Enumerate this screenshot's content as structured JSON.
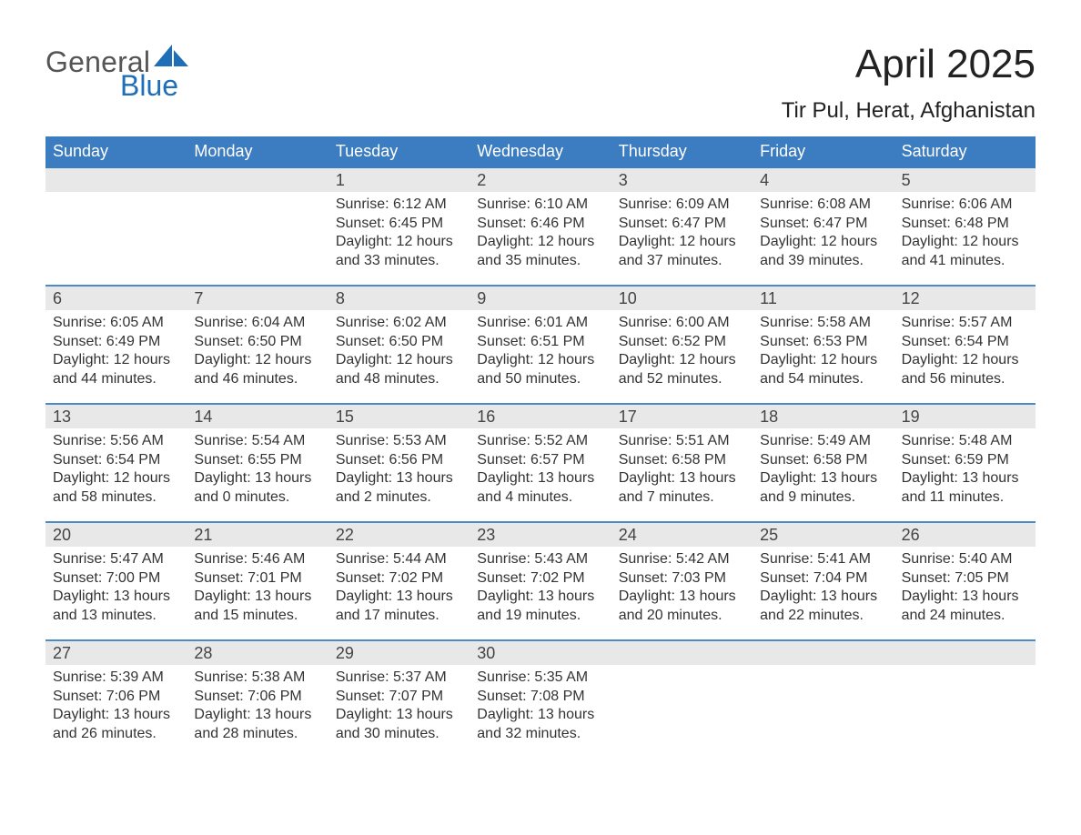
{
  "logo": {
    "text1": "General",
    "text2": "Blue",
    "sail_color": "#1e6fb8"
  },
  "title": "April 2025",
  "location": "Tir Pul, Herat, Afghanistan",
  "colors": {
    "header_blue": "#3c7cc0",
    "accent_blue": "#1e6fb8",
    "row_border": "#4b8cc6",
    "day_header_bg": "#e8e8e8",
    "background": "#ffffff"
  },
  "days_of_week": [
    "Sunday",
    "Monday",
    "Tuesday",
    "Wednesday",
    "Thursday",
    "Friday",
    "Saturday"
  ],
  "weeks": [
    [
      {
        "n": "",
        "sunrise": "",
        "sunset": "",
        "daylight1": "",
        "daylight2": ""
      },
      {
        "n": "",
        "sunrise": "",
        "sunset": "",
        "daylight1": "",
        "daylight2": ""
      },
      {
        "n": "1",
        "sunrise": "Sunrise: 6:12 AM",
        "sunset": "Sunset: 6:45 PM",
        "daylight1": "Daylight: 12 hours",
        "daylight2": "and 33 minutes."
      },
      {
        "n": "2",
        "sunrise": "Sunrise: 6:10 AM",
        "sunset": "Sunset: 6:46 PM",
        "daylight1": "Daylight: 12 hours",
        "daylight2": "and 35 minutes."
      },
      {
        "n": "3",
        "sunrise": "Sunrise: 6:09 AM",
        "sunset": "Sunset: 6:47 PM",
        "daylight1": "Daylight: 12 hours",
        "daylight2": "and 37 minutes."
      },
      {
        "n": "4",
        "sunrise": "Sunrise: 6:08 AM",
        "sunset": "Sunset: 6:47 PM",
        "daylight1": "Daylight: 12 hours",
        "daylight2": "and 39 minutes."
      },
      {
        "n": "5",
        "sunrise": "Sunrise: 6:06 AM",
        "sunset": "Sunset: 6:48 PM",
        "daylight1": "Daylight: 12 hours",
        "daylight2": "and 41 minutes."
      }
    ],
    [
      {
        "n": "6",
        "sunrise": "Sunrise: 6:05 AM",
        "sunset": "Sunset: 6:49 PM",
        "daylight1": "Daylight: 12 hours",
        "daylight2": "and 44 minutes."
      },
      {
        "n": "7",
        "sunrise": "Sunrise: 6:04 AM",
        "sunset": "Sunset: 6:50 PM",
        "daylight1": "Daylight: 12 hours",
        "daylight2": "and 46 minutes."
      },
      {
        "n": "8",
        "sunrise": "Sunrise: 6:02 AM",
        "sunset": "Sunset: 6:50 PM",
        "daylight1": "Daylight: 12 hours",
        "daylight2": "and 48 minutes."
      },
      {
        "n": "9",
        "sunrise": "Sunrise: 6:01 AM",
        "sunset": "Sunset: 6:51 PM",
        "daylight1": "Daylight: 12 hours",
        "daylight2": "and 50 minutes."
      },
      {
        "n": "10",
        "sunrise": "Sunrise: 6:00 AM",
        "sunset": "Sunset: 6:52 PM",
        "daylight1": "Daylight: 12 hours",
        "daylight2": "and 52 minutes."
      },
      {
        "n": "11",
        "sunrise": "Sunrise: 5:58 AM",
        "sunset": "Sunset: 6:53 PM",
        "daylight1": "Daylight: 12 hours",
        "daylight2": "and 54 minutes."
      },
      {
        "n": "12",
        "sunrise": "Sunrise: 5:57 AM",
        "sunset": "Sunset: 6:54 PM",
        "daylight1": "Daylight: 12 hours",
        "daylight2": "and 56 minutes."
      }
    ],
    [
      {
        "n": "13",
        "sunrise": "Sunrise: 5:56 AM",
        "sunset": "Sunset: 6:54 PM",
        "daylight1": "Daylight: 12 hours",
        "daylight2": "and 58 minutes."
      },
      {
        "n": "14",
        "sunrise": "Sunrise: 5:54 AM",
        "sunset": "Sunset: 6:55 PM",
        "daylight1": "Daylight: 13 hours",
        "daylight2": "and 0 minutes."
      },
      {
        "n": "15",
        "sunrise": "Sunrise: 5:53 AM",
        "sunset": "Sunset: 6:56 PM",
        "daylight1": "Daylight: 13 hours",
        "daylight2": "and 2 minutes."
      },
      {
        "n": "16",
        "sunrise": "Sunrise: 5:52 AM",
        "sunset": "Sunset: 6:57 PM",
        "daylight1": "Daylight: 13 hours",
        "daylight2": "and 4 minutes."
      },
      {
        "n": "17",
        "sunrise": "Sunrise: 5:51 AM",
        "sunset": "Sunset: 6:58 PM",
        "daylight1": "Daylight: 13 hours",
        "daylight2": "and 7 minutes."
      },
      {
        "n": "18",
        "sunrise": "Sunrise: 5:49 AM",
        "sunset": "Sunset: 6:58 PM",
        "daylight1": "Daylight: 13 hours",
        "daylight2": "and 9 minutes."
      },
      {
        "n": "19",
        "sunrise": "Sunrise: 5:48 AM",
        "sunset": "Sunset: 6:59 PM",
        "daylight1": "Daylight: 13 hours",
        "daylight2": "and 11 minutes."
      }
    ],
    [
      {
        "n": "20",
        "sunrise": "Sunrise: 5:47 AM",
        "sunset": "Sunset: 7:00 PM",
        "daylight1": "Daylight: 13 hours",
        "daylight2": "and 13 minutes."
      },
      {
        "n": "21",
        "sunrise": "Sunrise: 5:46 AM",
        "sunset": "Sunset: 7:01 PM",
        "daylight1": "Daylight: 13 hours",
        "daylight2": "and 15 minutes."
      },
      {
        "n": "22",
        "sunrise": "Sunrise: 5:44 AM",
        "sunset": "Sunset: 7:02 PM",
        "daylight1": "Daylight: 13 hours",
        "daylight2": "and 17 minutes."
      },
      {
        "n": "23",
        "sunrise": "Sunrise: 5:43 AM",
        "sunset": "Sunset: 7:02 PM",
        "daylight1": "Daylight: 13 hours",
        "daylight2": "and 19 minutes."
      },
      {
        "n": "24",
        "sunrise": "Sunrise: 5:42 AM",
        "sunset": "Sunset: 7:03 PM",
        "daylight1": "Daylight: 13 hours",
        "daylight2": "and 20 minutes."
      },
      {
        "n": "25",
        "sunrise": "Sunrise: 5:41 AM",
        "sunset": "Sunset: 7:04 PM",
        "daylight1": "Daylight: 13 hours",
        "daylight2": "and 22 minutes."
      },
      {
        "n": "26",
        "sunrise": "Sunrise: 5:40 AM",
        "sunset": "Sunset: 7:05 PM",
        "daylight1": "Daylight: 13 hours",
        "daylight2": "and 24 minutes."
      }
    ],
    [
      {
        "n": "27",
        "sunrise": "Sunrise: 5:39 AM",
        "sunset": "Sunset: 7:06 PM",
        "daylight1": "Daylight: 13 hours",
        "daylight2": "and 26 minutes."
      },
      {
        "n": "28",
        "sunrise": "Sunrise: 5:38 AM",
        "sunset": "Sunset: 7:06 PM",
        "daylight1": "Daylight: 13 hours",
        "daylight2": "and 28 minutes."
      },
      {
        "n": "29",
        "sunrise": "Sunrise: 5:37 AM",
        "sunset": "Sunset: 7:07 PM",
        "daylight1": "Daylight: 13 hours",
        "daylight2": "and 30 minutes."
      },
      {
        "n": "30",
        "sunrise": "Sunrise: 5:35 AM",
        "sunset": "Sunset: 7:08 PM",
        "daylight1": "Daylight: 13 hours",
        "daylight2": "and 32 minutes."
      },
      {
        "n": "",
        "sunrise": "",
        "sunset": "",
        "daylight1": "",
        "daylight2": ""
      },
      {
        "n": "",
        "sunrise": "",
        "sunset": "",
        "daylight1": "",
        "daylight2": ""
      },
      {
        "n": "",
        "sunrise": "",
        "sunset": "",
        "daylight1": "",
        "daylight2": ""
      }
    ]
  ]
}
